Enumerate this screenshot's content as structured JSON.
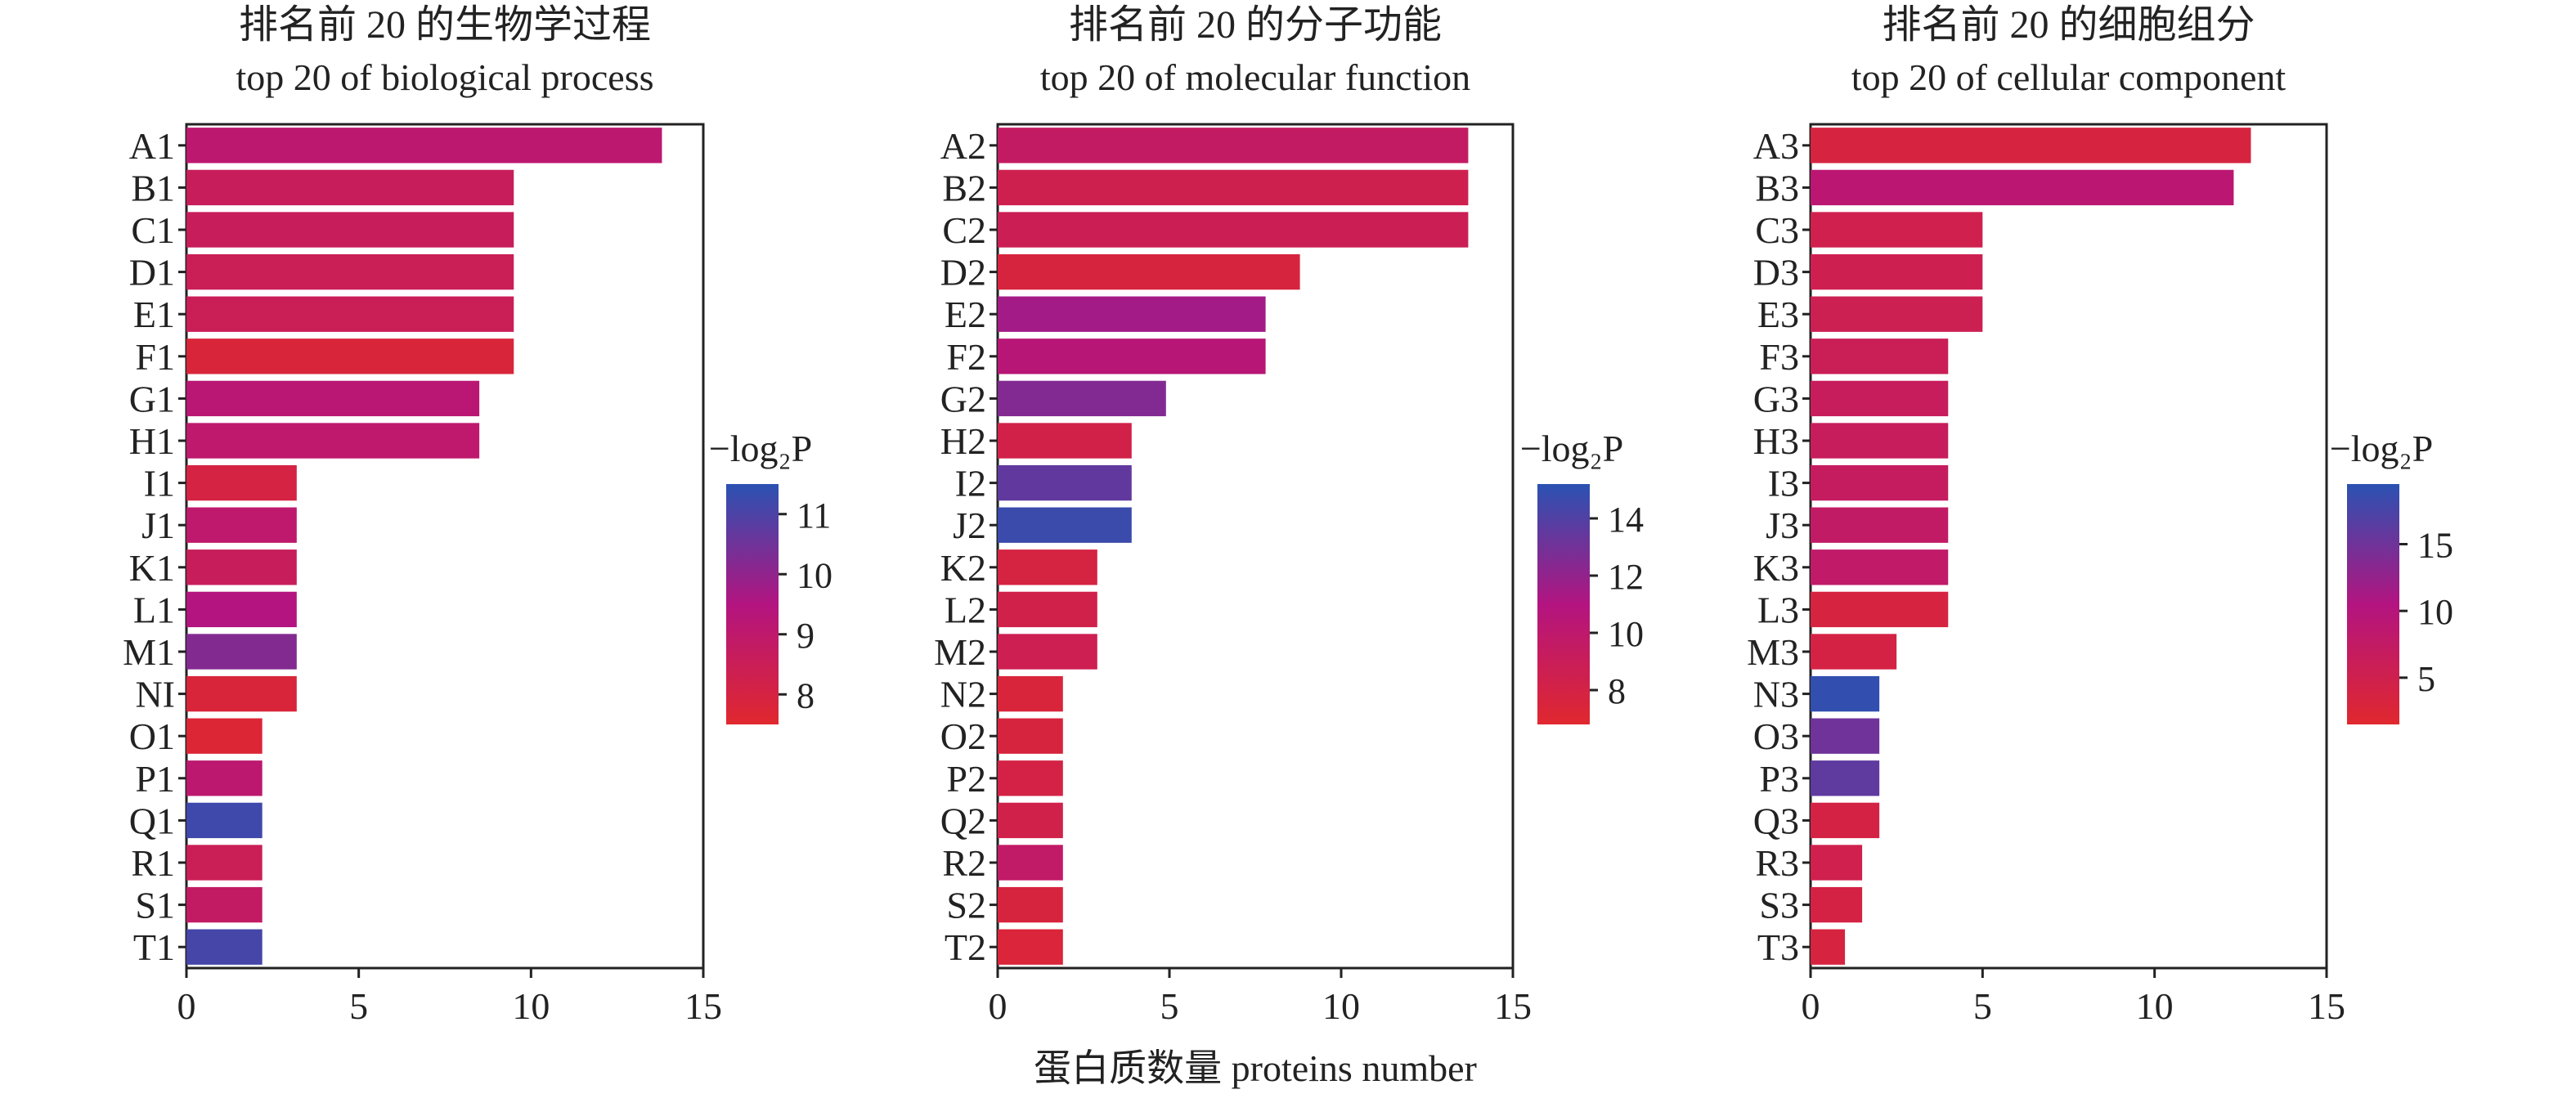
{
  "xlabel": "蛋白质数量 proteins number",
  "colors": {
    "low": "#e0282e",
    "mid": "#b31480",
    "high": "#2a52b2",
    "axis": "#222222"
  },
  "chart_data": [
    {
      "type": "bar",
      "orientation": "horizontal",
      "title": "排名前 20 的生物学过程",
      "subtitle": "top 20 of biological process",
      "categories": [
        "A1",
        "B1",
        "C1",
        "D1",
        "E1",
        "F1",
        "G1",
        "H1",
        "I1",
        "J1",
        "K1",
        "L1",
        "M1",
        "NI",
        "O1",
        "P1",
        "Q1",
        "R1",
        "S1",
        "T1"
      ],
      "values": [
        13.8,
        9.5,
        9.5,
        9.5,
        9.5,
        9.5,
        8.5,
        8.5,
        3.2,
        3.2,
        3.2,
        3.2,
        3.2,
        3.2,
        2.2,
        2.2,
        2.2,
        2.2,
        2.2,
        2.2
      ],
      "color_values": [
        9.1,
        8.6,
        8.6,
        8.5,
        8.5,
        7.8,
        9.2,
        9.0,
        8.0,
        9.0,
        8.6,
        9.5,
        10.2,
        7.8,
        7.7,
        9.1,
        11.2,
        8.5,
        8.8,
        11.1
      ],
      "xlim": [
        0,
        15
      ],
      "xticks": [
        0,
        5,
        10,
        15
      ],
      "colorbar": {
        "label": "−log₂P",
        "range": [
          7.5,
          11.5
        ],
        "ticks": [
          8,
          9,
          10,
          11
        ]
      }
    },
    {
      "type": "bar",
      "orientation": "horizontal",
      "title": "排名前 20 的分子功能",
      "subtitle": "top 20 of molecular function",
      "categories": [
        "A2",
        "B2",
        "C2",
        "D2",
        "E2",
        "F2",
        "G2",
        "H2",
        "I2",
        "J2",
        "K2",
        "L2",
        "M2",
        "N2",
        "O2",
        "P2",
        "Q2",
        "R2",
        "S2",
        "T2"
      ],
      "values": [
        13.7,
        13.7,
        13.7,
        8.8,
        7.8,
        7.8,
        4.9,
        3.9,
        3.9,
        3.9,
        2.9,
        2.9,
        2.9,
        1.9,
        1.9,
        1.9,
        1.9,
        1.9,
        1.9,
        1.9
      ],
      "color_values": [
        9.5,
        8.5,
        8.8,
        7.6,
        11.5,
        10.5,
        12.5,
        8.2,
        13.5,
        14.7,
        7.8,
        8.3,
        8.6,
        7.5,
        7.6,
        8.0,
        8.3,
        9.7,
        7.6,
        7.4
      ],
      "xlim": [
        0,
        15
      ],
      "xticks": [
        0,
        5,
        10,
        15
      ],
      "colorbar": {
        "label": "−log₂P",
        "range": [
          6.8,
          15.2
        ],
        "ticks": [
          8,
          10,
          12,
          14
        ]
      }
    },
    {
      "type": "bar",
      "orientation": "horizontal",
      "title": "排名前 20 的细胞组分",
      "subtitle": "top 20 of cellular component",
      "categories": [
        "A3",
        "B3",
        "C3",
        "D3",
        "E3",
        "F3",
        "G3",
        "H3",
        "I3",
        "J3",
        "K3",
        "L3",
        "M3",
        "N3",
        "O3",
        "P3",
        "Q3",
        "R3",
        "S3",
        "T3"
      ],
      "values": [
        12.8,
        12.3,
        5.0,
        5.0,
        5.0,
        4.0,
        4.0,
        4.0,
        4.0,
        4.0,
        4.0,
        4.0,
        2.5,
        2.0,
        2.0,
        2.0,
        2.0,
        1.5,
        1.5,
        1.0
      ],
      "color_values": [
        3.5,
        9.0,
        5.0,
        5.2,
        5.5,
        6.0,
        6.5,
        6.5,
        7.0,
        7.5,
        8.0,
        3.5,
        4.0,
        19.0,
        15.0,
        16.0,
        4.0,
        5.0,
        4.0,
        3.5
      ],
      "xlim": [
        0,
        15
      ],
      "xticks": [
        0,
        5,
        10,
        15
      ],
      "colorbar": {
        "label": "−log₂P",
        "range": [
          1.5,
          19.5
        ],
        "ticks": [
          5,
          10,
          15
        ]
      }
    }
  ]
}
